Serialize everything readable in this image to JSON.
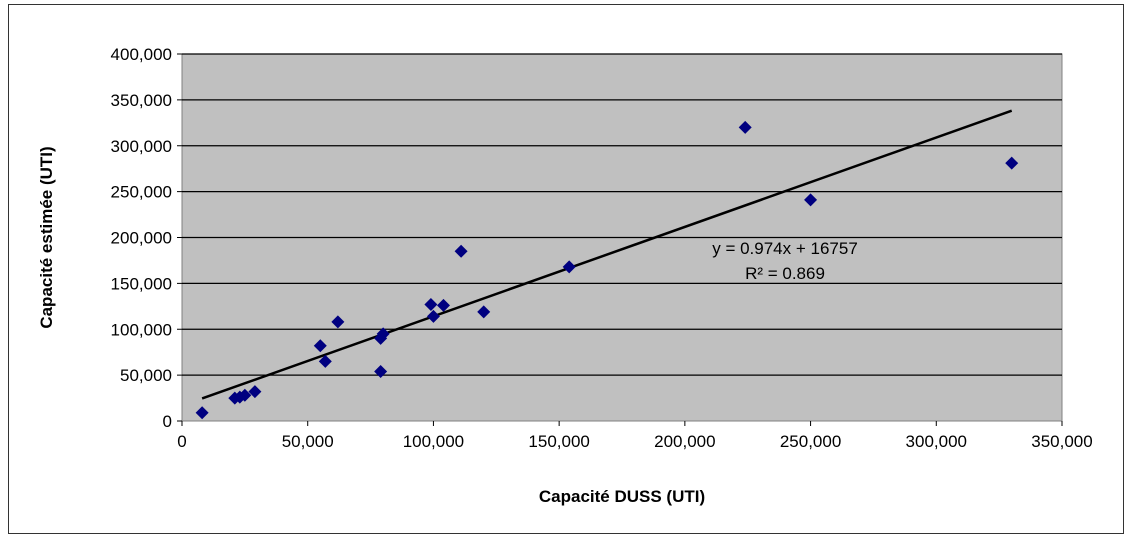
{
  "chart_data": {
    "type": "scatter",
    "xlabel": "Capacité DUSS (UTI)",
    "ylabel": "Capacité estimée (UTI)",
    "xlim": [
      0,
      350000
    ],
    "ylim": [
      0,
      400000
    ],
    "x_ticks": [
      "0",
      "50,000",
      "100,000",
      "150,000",
      "200,000",
      "250,000",
      "300,000",
      "350,000"
    ],
    "y_ticks": [
      "0",
      "50,000",
      "100,000",
      "150,000",
      "200,000",
      "250,000",
      "300,000",
      "350,000",
      "400,000"
    ],
    "grid": "horizontal",
    "plot_background": "#c0c0c0",
    "marker_color": "#000080",
    "trendline": {
      "slope": 0.974,
      "intercept": 16757,
      "x_range": [
        8000,
        330000
      ]
    },
    "annotation": {
      "equation": "y = 0.974x + 16757",
      "r2": "R² = 0.869"
    },
    "points": [
      {
        "x": 8000,
        "y": 9000
      },
      {
        "x": 21000,
        "y": 25000
      },
      {
        "x": 23000,
        "y": 26000
      },
      {
        "x": 25000,
        "y": 28000
      },
      {
        "x": 29000,
        "y": 32000
      },
      {
        "x": 55000,
        "y": 82000
      },
      {
        "x": 57000,
        "y": 65000
      },
      {
        "x": 62000,
        "y": 108000
      },
      {
        "x": 79000,
        "y": 54000
      },
      {
        "x": 79000,
        "y": 90000
      },
      {
        "x": 80000,
        "y": 95000
      },
      {
        "x": 99000,
        "y": 127000
      },
      {
        "x": 100000,
        "y": 114000
      },
      {
        "x": 104000,
        "y": 126000
      },
      {
        "x": 111000,
        "y": 185000
      },
      {
        "x": 120000,
        "y": 119000
      },
      {
        "x": 154000,
        "y": 168000
      },
      {
        "x": 224000,
        "y": 320000
      },
      {
        "x": 250000,
        "y": 241000
      },
      {
        "x": 330000,
        "y": 281000
      }
    ]
  }
}
